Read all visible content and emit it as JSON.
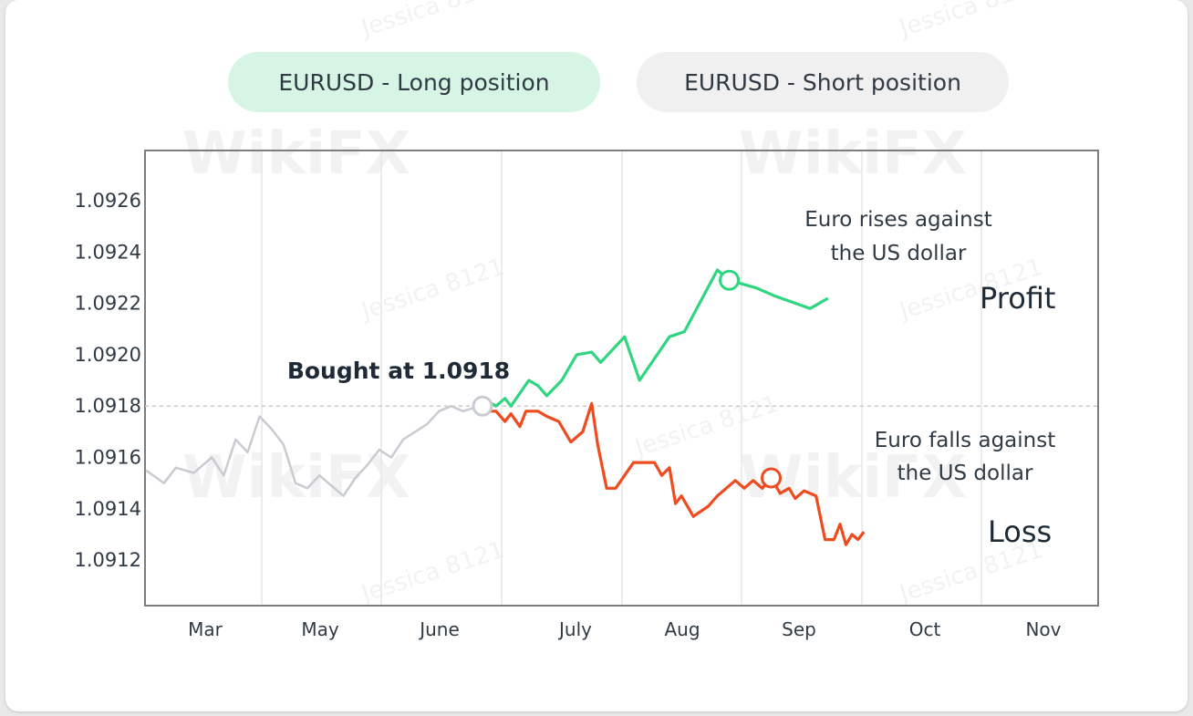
{
  "tabs": [
    {
      "label": "EURUSD - Long position",
      "active": true
    },
    {
      "label": "EURUSD - Short position",
      "active": false
    }
  ],
  "watermark": {
    "brand": "WikiFX",
    "user": "Jessica 8121"
  },
  "colors": {
    "history": "#c8ccd2",
    "profit": "#2fd67f",
    "loss": "#ee4b1f",
    "entry_line": "#c9c9c9",
    "frame": "#7d7d7d",
    "grid": "#e6e6e6",
    "active_tab": "#d6f5e4",
    "inactive_tab": "#f0f0f0"
  },
  "chart_data": {
    "type": "line",
    "x_ticks": [
      "Mar",
      "May",
      "June",
      "July",
      "Aug",
      "Sep",
      "Oct",
      "Nov"
    ],
    "y_ticks": [
      "1.0926",
      "1.0924",
      "1.0922",
      "1.0920",
      "1.0918",
      "1.0916",
      "1.0914",
      "1.0912"
    ],
    "ylim": [
      1.091,
      1.09278
    ],
    "entry_price": 1.0918,
    "entry_label": "Bought at 1.0918",
    "series": [
      {
        "key": "history",
        "points": [
          [
            0.0,
            1.09155
          ],
          [
            0.3,
            1.0915
          ],
          [
            0.5,
            1.09156
          ],
          [
            0.8,
            1.09154
          ],
          [
            1.1,
            1.0916
          ],
          [
            1.3,
            1.09153
          ],
          [
            1.5,
            1.09167
          ],
          [
            1.7,
            1.09162
          ],
          [
            1.9,
            1.09176
          ],
          [
            2.1,
            1.09171
          ],
          [
            2.3,
            1.09165
          ],
          [
            2.5,
            1.0915
          ],
          [
            2.7,
            1.09148
          ],
          [
            2.9,
            1.09153
          ],
          [
            3.1,
            1.09149
          ],
          [
            3.3,
            1.09145
          ],
          [
            3.5,
            1.09152
          ],
          [
            3.7,
            1.09157
          ],
          [
            3.9,
            1.09163
          ],
          [
            4.1,
            1.0916
          ],
          [
            4.3,
            1.09167
          ],
          [
            4.5,
            1.0917
          ],
          [
            4.7,
            1.09173
          ],
          [
            4.9,
            1.09178
          ],
          [
            5.1,
            1.0918
          ],
          [
            5.3,
            1.09178
          ],
          [
            5.58,
            1.0918
          ]
        ]
      },
      {
        "key": "profit",
        "label": "Profit",
        "annotation": [
          "Euro rises against",
          "the US dollar"
        ],
        "marker_index": 16,
        "points": [
          [
            5.7,
            1.09182
          ],
          [
            5.85,
            1.0918
          ],
          [
            6.0,
            1.09183
          ],
          [
            6.1,
            1.0918
          ],
          [
            6.4,
            1.0919
          ],
          [
            6.55,
            1.09188
          ],
          [
            6.7,
            1.09184
          ],
          [
            6.95,
            1.0919
          ],
          [
            7.2,
            1.092
          ],
          [
            7.45,
            1.09201
          ],
          [
            7.6,
            1.09197
          ],
          [
            8.0,
            1.09207
          ],
          [
            8.25,
            1.0919
          ],
          [
            8.75,
            1.09207
          ],
          [
            9.0,
            1.09209
          ],
          [
            9.55,
            1.09233
          ],
          [
            9.75,
            1.09229
          ],
          [
            10.2,
            1.09226
          ],
          [
            10.5,
            1.09223
          ],
          [
            11.1,
            1.09218
          ],
          [
            11.4,
            1.09222
          ]
        ]
      },
      {
        "key": "loss",
        "label": "Loss",
        "annotation": [
          "Euro falls against",
          "the US dollar"
        ],
        "marker_index": 28,
        "points": [
          [
            5.7,
            1.09178
          ],
          [
            5.85,
            1.09178
          ],
          [
            6.0,
            1.09174
          ],
          [
            6.1,
            1.09177
          ],
          [
            6.25,
            1.09172
          ],
          [
            6.35,
            1.09178
          ],
          [
            6.55,
            1.09178
          ],
          [
            6.7,
            1.09176
          ],
          [
            6.9,
            1.09174
          ],
          [
            7.1,
            1.09166
          ],
          [
            7.3,
            1.0917
          ],
          [
            7.45,
            1.09181
          ],
          [
            7.55,
            1.09165
          ],
          [
            7.7,
            1.09148
          ],
          [
            7.85,
            1.09148
          ],
          [
            8.15,
            1.09158
          ],
          [
            8.5,
            1.09158
          ],
          [
            8.62,
            1.09153
          ],
          [
            8.75,
            1.09156
          ],
          [
            8.85,
            1.09142
          ],
          [
            8.95,
            1.09145
          ],
          [
            9.15,
            1.09137
          ],
          [
            9.4,
            1.09141
          ],
          [
            9.55,
            1.09145
          ],
          [
            9.85,
            1.09151
          ],
          [
            10.0,
            1.09148
          ],
          [
            10.15,
            1.09151
          ],
          [
            10.3,
            1.09148
          ],
          [
            10.45,
            1.09152
          ],
          [
            10.6,
            1.09146
          ],
          [
            10.75,
            1.09148
          ],
          [
            10.85,
            1.09144
          ],
          [
            11.0,
            1.09147
          ],
          [
            11.2,
            1.09145
          ],
          [
            11.35,
            1.09128
          ],
          [
            11.5,
            1.09128
          ],
          [
            11.6,
            1.09134
          ],
          [
            11.7,
            1.09126
          ],
          [
            11.8,
            1.0913
          ],
          [
            11.9,
            1.09128
          ],
          [
            12.0,
            1.09131
          ]
        ]
      }
    ]
  }
}
